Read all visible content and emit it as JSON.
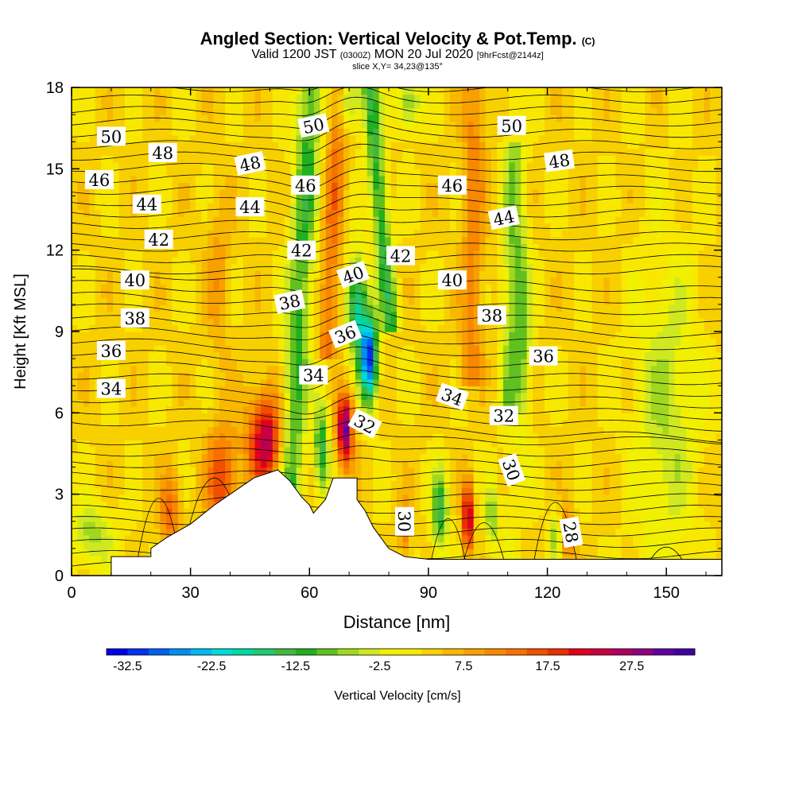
{
  "title": {
    "main": "Angled Section: Vertical Velocity & Pot.Temp.",
    "copyright": "(C)",
    "valid_prefix": "Valid 1200 JST",
    "valid_zulu": "(0300Z)",
    "valid_date": "MON 20 Jul 2020",
    "forecast": "[9hrFcst@2144z]",
    "slice": "slice X,Y= 34,23@135°"
  },
  "chart_data": {
    "type": "heatmap",
    "xlabel": "Distance [nm]",
    "ylabel": "Height [Kft MSL]",
    "xlim": [
      0,
      164
    ],
    "ylim": [
      0,
      18
    ],
    "xticks": [
      0,
      30,
      60,
      90,
      120,
      150
    ],
    "yticks": [
      0,
      3,
      6,
      9,
      12,
      15,
      18
    ],
    "colorbar": {
      "label": "Vertical Velocity [cm/s]",
      "min": -35,
      "max": 35,
      "step": 2.5,
      "tick_labels": [
        "-32.5",
        "-22.5",
        "-12.5",
        "-2.5",
        "7.5",
        "17.5",
        "27.5"
      ],
      "tick_values": [
        -32.5,
        -22.5,
        -12.5,
        -2.5,
        7.5,
        17.5,
        27.5
      ],
      "colors": [
        "#0000e8",
        "#0030f0",
        "#0060f0",
        "#0090f0",
        "#00b8f0",
        "#00d8d8",
        "#00d8a0",
        "#20c870",
        "#40b840",
        "#20b020",
        "#60c020",
        "#a0d820",
        "#d0e820",
        "#f0f000",
        "#f8e800",
        "#f8d000",
        "#f8b800",
        "#f8a000",
        "#f88800",
        "#f87000",
        "#f05000",
        "#e83000",
        "#e00020",
        "#c80040",
        "#b00060",
        "#900080",
        "#6000a0",
        "#4000a0"
      ]
    },
    "velocity_features": [
      {
        "x": 49,
        "y": 5.0,
        "w": -0.0,
        "value": 22
      },
      {
        "x": 69,
        "y": 5.5,
        "value": 30
      },
      {
        "x": 75,
        "y": 8.0,
        "value": -30
      },
      {
        "x": 93,
        "y": 2.5,
        "value": -15
      },
      {
        "x": 100,
        "y": 2.0,
        "value": 25
      },
      {
        "x": 63,
        "y": 5.0,
        "value": -15
      }
    ],
    "terrain": [
      [
        0,
        0
      ],
      [
        10,
        0
      ],
      [
        10,
        0.7
      ],
      [
        20,
        0.7
      ],
      [
        20,
        1.0
      ],
      [
        24,
        1.4
      ],
      [
        30,
        1.9
      ],
      [
        36,
        2.6
      ],
      [
        42,
        3.2
      ],
      [
        46,
        3.6
      ],
      [
        52,
        3.9
      ],
      [
        55,
        3.5
      ],
      [
        58,
        2.9
      ],
      [
        60,
        2.6
      ],
      [
        61,
        2.3
      ],
      [
        64,
        2.8
      ],
      [
        66,
        3.6
      ],
      [
        72,
        3.6
      ],
      [
        72,
        2.8
      ],
      [
        74,
        2.4
      ],
      [
        76,
        1.8
      ],
      [
        78,
        1.4
      ],
      [
        80,
        1.0
      ],
      [
        84,
        0.7
      ],
      [
        90,
        0.6
      ],
      [
        164,
        0.6
      ],
      [
        164,
        0
      ]
    ],
    "theta_labels": [
      {
        "text": "50",
        "x": 10,
        "y": 16.2,
        "rot": 0
      },
      {
        "text": "48",
        "x": 23,
        "y": 15.6,
        "rot": 0
      },
      {
        "text": "46",
        "x": 7,
        "y": 14.6,
        "rot": 0
      },
      {
        "text": "44",
        "x": 19,
        "y": 13.7,
        "rot": 0
      },
      {
        "text": "42",
        "x": 22,
        "y": 12.4,
        "rot": 0
      },
      {
        "text": "40",
        "x": 16,
        "y": 10.9,
        "rot": 0
      },
      {
        "text": "38",
        "x": 16,
        "y": 9.5,
        "rot": 0
      },
      {
        "text": "36",
        "x": 10,
        "y": 8.3,
        "rot": 0
      },
      {
        "text": "34",
        "x": 10,
        "y": 6.9,
        "rot": 0
      },
      {
        "text": "48",
        "x": 45,
        "y": 15.2,
        "rot": 12
      },
      {
        "text": "44",
        "x": 45,
        "y": 13.6,
        "rot": 0
      },
      {
        "text": "50",
        "x": 61,
        "y": 16.6,
        "rot": 12
      },
      {
        "text": "46",
        "x": 59,
        "y": 14.4,
        "rot": 0
      },
      {
        "text": "42",
        "x": 58,
        "y": 12.0,
        "rot": 0
      },
      {
        "text": "38",
        "x": 55,
        "y": 10.1,
        "rot": 12
      },
      {
        "text": "40",
        "x": 71,
        "y": 11.1,
        "rot": 20
      },
      {
        "text": "36",
        "x": 69,
        "y": 8.9,
        "rot": 22
      },
      {
        "text": "34",
        "x": 61,
        "y": 7.4,
        "rot": 0
      },
      {
        "text": "32",
        "x": 74,
        "y": 5.6,
        "rot": -28
      },
      {
        "text": "42",
        "x": 83,
        "y": 11.8,
        "rot": 0
      },
      {
        "text": "46",
        "x": 96,
        "y": 14.4,
        "rot": 0
      },
      {
        "text": "40",
        "x": 96,
        "y": 10.9,
        "rot": 0
      },
      {
        "text": "34",
        "x": 96,
        "y": 6.6,
        "rot": -20
      },
      {
        "text": "30",
        "x": 84,
        "y": 2.0,
        "rot": -90
      },
      {
        "text": "50",
        "x": 111,
        "y": 16.6,
        "rot": 0
      },
      {
        "text": "48",
        "x": 123,
        "y": 15.3,
        "rot": 8
      },
      {
        "text": "44",
        "x": 109,
        "y": 13.2,
        "rot": 12
      },
      {
        "text": "38",
        "x": 106,
        "y": 9.6,
        "rot": 0
      },
      {
        "text": "36",
        "x": 119,
        "y": 8.1,
        "rot": 0
      },
      {
        "text": "32",
        "x": 109,
        "y": 5.9,
        "rot": 0
      },
      {
        "text": "30",
        "x": 111,
        "y": 3.9,
        "rot": -70
      },
      {
        "text": "28",
        "x": 126,
        "y": 1.6,
        "rot": -80
      }
    ],
    "grid": false,
    "legend": "bottom"
  }
}
